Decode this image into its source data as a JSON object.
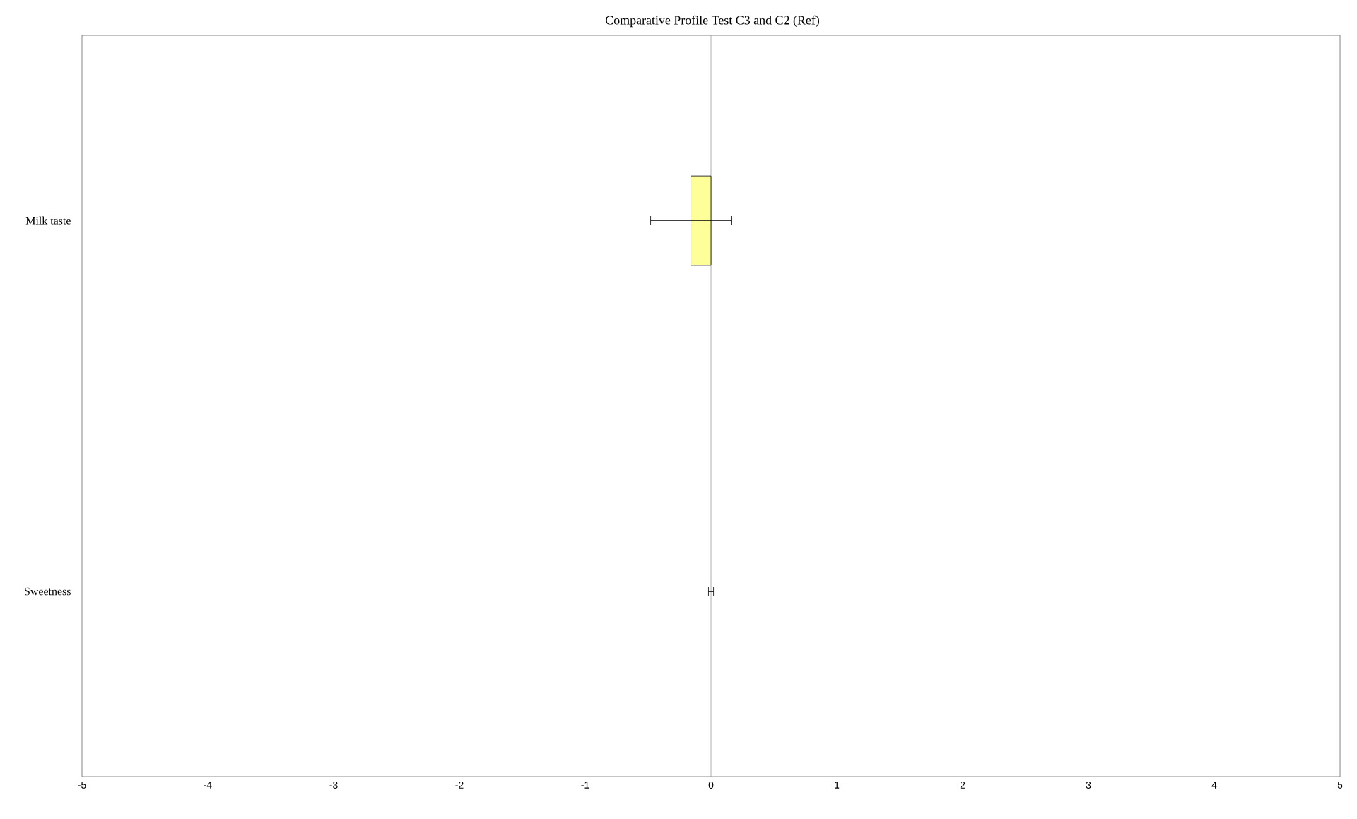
{
  "chart_data": {
    "type": "bar",
    "orientation": "horizontal",
    "title": "Comparative Profile Test C3 and C2 (Ref)",
    "categories": [
      "Milk taste",
      "Sweetness"
    ],
    "values": [
      -0.16,
      0
    ],
    "errors": [
      0.32,
      0.02
    ],
    "color": "#ffff99",
    "xlim": [
      -5,
      5
    ],
    "xticks": [
      -5,
      -4,
      -3,
      -2,
      -1,
      0,
      1,
      2,
      3,
      4,
      5
    ],
    "ref_lines": [
      {
        "axis": "x",
        "value": 0,
        "color": "#999999"
      }
    ]
  }
}
